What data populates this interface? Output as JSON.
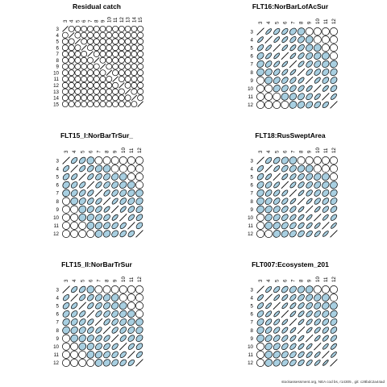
{
  "footer_text": "stockassessment.org, NEA cod bs, r14305 , git: c28bdc2a44ad",
  "colors": {
    "positive_fill": "#a8cfe1",
    "negative_fill": "#ffffff",
    "stroke": "#000000"
  },
  "chart_data": [
    {
      "type": "heatmap",
      "style": "correlation-ellipses",
      "title": "Residual catch",
      "labels": [
        "3",
        "4",
        "5",
        "6",
        "7",
        "8",
        "9",
        "10",
        "11",
        "12",
        "13",
        "14",
        "15"
      ],
      "shade": "white",
      "cells": [
        "/000000000000",
        "0/00000000000",
        "00/0000000000",
        "000/000000000",
        "0000/00000000",
        "00000/0000000",
        "000000/000000",
        "0000000/00000",
        "00000000/0000",
        "000000000/000",
        "0000000000/00",
        "00000000000/0",
        "000000000000/"
      ]
    },
    {
      "type": "heatmap",
      "style": "correlation-ellipses",
      "title": "FLT16:NorBarLofAcSur",
      "labels": [
        "3",
        "4",
        "5",
        "6",
        "7",
        "8",
        "9",
        "10",
        "11",
        "12"
      ],
      "shade": "blue",
      "cells": [
        "/755310000",
        "7/76531000",
        "57/7642100",
        "367/753210",
        "2467/64321",
        "12467/5432",
        "013456/643",
        "0023456/64",
        "00012346/6",
        "000012345/"
      ]
    },
    {
      "type": "heatmap",
      "style": "correlation-ellipses",
      "title": "FLT15_I:NorBarTrSur_",
      "labels": [
        "3",
        "4",
        "5",
        "6",
        "7",
        "8",
        "9",
        "10",
        "11",
        "12"
      ],
      "shade": "blue",
      "cells": [
        "/541000000",
        "5/54210000",
        "45/5432100",
        "245/543210",
        "1345/54321",
        "01345/6432",
        "001346/643",
        "0012346/54",
        "00012345/4",
        "000012344/"
      ]
    },
    {
      "type": "heatmap",
      "style": "correlation-ellipses",
      "title": "FLT18:RusSweptArea",
      "labels": [
        "3",
        "4",
        "5",
        "6",
        "7",
        "8",
        "9",
        "10",
        "11",
        "12"
      ],
      "shade": "blue",
      "cells": [
        "/542100000",
        "5/64321000",
        "46/6543210",
        "346/654321",
        "2456/75432",
        "13457/7543",
        "123457/754",
        "0234567/75",
        "01234567/7",
        "001234567/"
      ]
    },
    {
      "type": "heatmap",
      "style": "correlation-ellipses",
      "title": "FLT15_II:NorBarTrSur",
      "labels": [
        "3",
        "4",
        "5",
        "6",
        "7",
        "8",
        "9",
        "10",
        "11",
        "12"
      ],
      "shade": "blue",
      "cells": [
        "/541000000",
        "5/54321000",
        "45/5432100",
        "345/543210",
        "2345/54321",
        "12345/5432",
        "012345/543",
        "0012345/54",
        "00012345/5",
        "000012345/"
      ]
    },
    {
      "type": "heatmap",
      "style": "correlation-ellipses",
      "title": "FLT007:Ecosystem_201",
      "labels": [
        "3",
        "4",
        "5",
        "6",
        "7",
        "8",
        "9",
        "10",
        "11",
        "12"
      ],
      "shade": "blue",
      "cells": [
        "/654321000",
        "6/76543210",
        "57/7654321",
        "467/765432",
        "3567/76543",
        "24567/7654",
        "134567/765",
        "0234567/76",
        "01234567/7",
        "012345678/"
      ]
    }
  ]
}
